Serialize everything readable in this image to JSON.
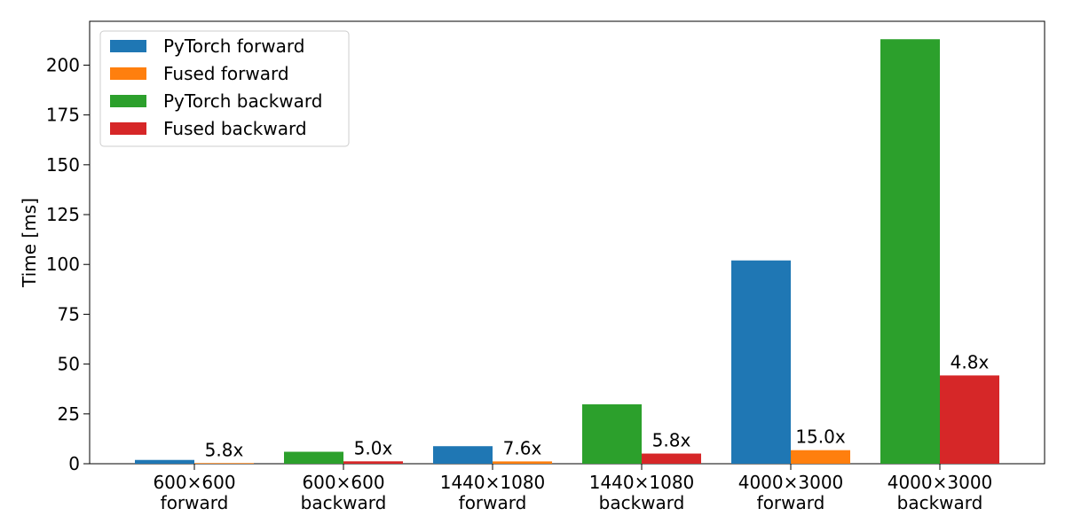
{
  "chart_data": {
    "type": "bar",
    "ylabel": "Time [ms]",
    "ylim": [
      0,
      222
    ],
    "yticks": [
      0,
      25,
      50,
      75,
      100,
      125,
      150,
      175,
      200
    ],
    "grid": false,
    "legend_position": "top-left",
    "categories": [
      [
        "600×600",
        "forward"
      ],
      [
        "600×600",
        "backward"
      ],
      [
        "1440×1080",
        "forward"
      ],
      [
        "1440×1080",
        "backward"
      ],
      [
        "4000×3000",
        "forward"
      ],
      [
        "4000×3000",
        "backward"
      ]
    ],
    "series": [
      {
        "name": "PyTorch forward",
        "color": "#1f77b4"
      },
      {
        "name": "Fused forward",
        "color": "#ff7f0e"
      },
      {
        "name": "PyTorch backward",
        "color": "#2ca02c"
      },
      {
        "name": "Fused backward",
        "color": "#d62728"
      }
    ],
    "groups": [
      {
        "bars": [
          {
            "series": 0,
            "value": 1.9
          },
          {
            "series": 1,
            "value": 0.33
          }
        ],
        "speedup": "5.8x"
      },
      {
        "bars": [
          {
            "series": 2,
            "value": 6.0
          },
          {
            "series": 3,
            "value": 1.2
          }
        ],
        "speedup": "5.0x"
      },
      {
        "bars": [
          {
            "series": 0,
            "value": 8.8
          },
          {
            "series": 1,
            "value": 1.16
          }
        ],
        "speedup": "7.6x"
      },
      {
        "bars": [
          {
            "series": 2,
            "value": 29.8
          },
          {
            "series": 3,
            "value": 5.1
          }
        ],
        "speedup": "5.8x"
      },
      {
        "bars": [
          {
            "series": 0,
            "value": 102
          },
          {
            "series": 1,
            "value": 6.8
          }
        ],
        "speedup": "15.0x"
      },
      {
        "bars": [
          {
            "series": 2,
            "value": 213
          },
          {
            "series": 3,
            "value": 44.3
          }
        ],
        "speedup": "4.8x"
      }
    ]
  }
}
